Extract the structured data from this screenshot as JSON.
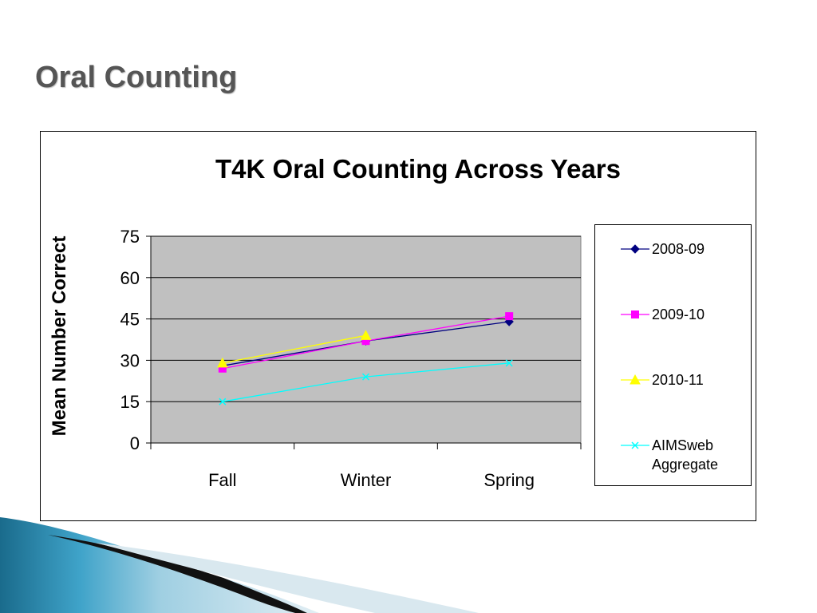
{
  "slide": {
    "title": "Oral Counting"
  },
  "chart_data": {
    "type": "line",
    "title": "T4K Oral Counting Across Years",
    "xlabel": "",
    "ylabel": "Mean Number Correct",
    "categories": [
      "Fall",
      "Winter",
      "Spring"
    ],
    "ylim": [
      0,
      75
    ],
    "yticks": [
      "0",
      "15",
      "30",
      "45",
      "60",
      "75"
    ],
    "grid": true,
    "legend_position": "right",
    "series": [
      {
        "name": "2008-09",
        "values": [
          28,
          37,
          44
        ],
        "color": "#000080",
        "marker": "diamond"
      },
      {
        "name": "2009-10",
        "values": [
          27,
          37,
          46
        ],
        "color": "#ff00ff",
        "marker": "square"
      },
      {
        "name": "2010-11",
        "values": [
          29,
          39,
          null
        ],
        "color": "#ffff00",
        "marker": "triangle"
      },
      {
        "name": "AIMSweb Aggregate",
        "values": [
          15,
          24,
          29
        ],
        "color": "#00ffff",
        "marker": "x"
      }
    ]
  },
  "colors": {
    "plot_background": "#c0c0c0",
    "title_text": "#555555"
  }
}
